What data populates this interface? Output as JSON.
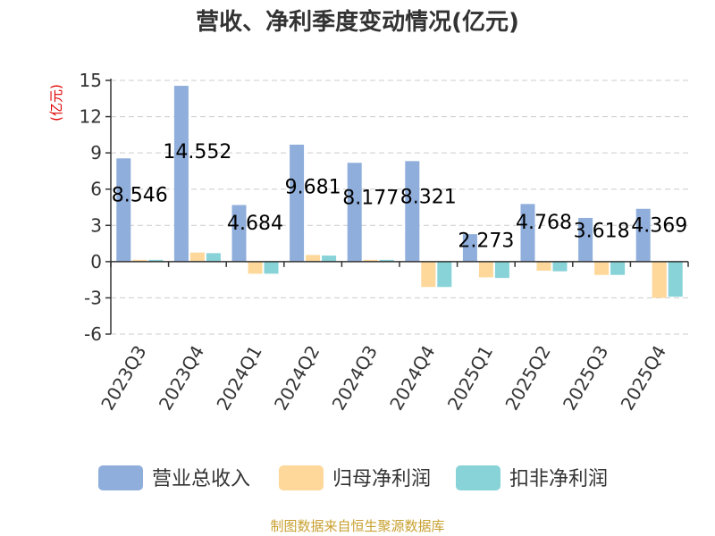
{
  "title": "营收、净利季度变动情况(亿元)",
  "source": "制图数据来自恒生聚源数据库",
  "colors": {
    "revenue": "#8FAEDB",
    "parent_profit": "#FDD89A",
    "deducted_profit": "#87D3D8"
  },
  "chart_data": {
    "type": "bar",
    "title": "营收、净利季度变动情况(亿元)",
    "ylabel": "(亿元)",
    "xlabel": "",
    "ylim": [
      -6,
      15
    ],
    "yticks": [
      15,
      12,
      9,
      6,
      3,
      0,
      -3,
      -6
    ],
    "grid": true,
    "legend_position": "bottom",
    "categories": [
      "2023Q3",
      "2023Q4",
      "2024Q1",
      "2024Q2",
      "2024Q3",
      "2024Q4",
      "2025Q1",
      "2025Q2",
      "2025Q3",
      "2025Q4"
    ],
    "series": [
      {
        "name": "营业总收入",
        "values": [
          8.546,
          14.552,
          4.684,
          9.681,
          8.177,
          8.321,
          2.273,
          4.768,
          3.618,
          4.369
        ],
        "labels": [
          "8.546",
          "14.552",
          "4.684",
          "9.681",
          "8.177",
          "8.321",
          "2.273",
          "4.768",
          "3.618",
          "4.369"
        ]
      },
      {
        "name": "归母净利润",
        "values": [
          0.15,
          0.75,
          -1.0,
          0.55,
          0.15,
          -2.1,
          -1.3,
          -0.75,
          -1.1,
          -3.0
        ]
      },
      {
        "name": "扣非净利润",
        "values": [
          0.15,
          0.7,
          -1.0,
          0.5,
          0.15,
          -2.1,
          -1.35,
          -0.8,
          -1.1,
          -2.9
        ]
      }
    ]
  }
}
